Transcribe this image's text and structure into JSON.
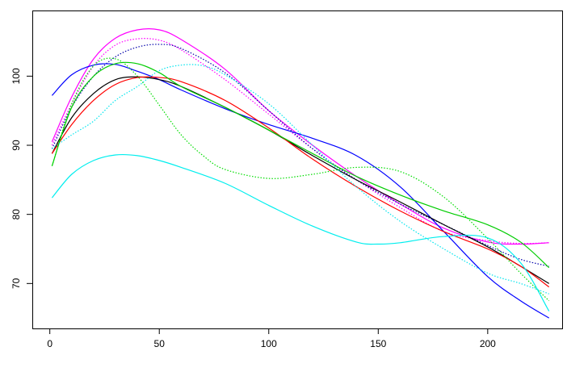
{
  "chart_data": {
    "type": "line",
    "title": "",
    "xlabel": "",
    "ylabel": "",
    "xlim": [
      -8,
      234
    ],
    "ylim": [
      63.5,
      109.5
    ],
    "grid": false,
    "legend": "none",
    "x_ticks": [
      0,
      50,
      100,
      150,
      200
    ],
    "y_ticks": [
      70,
      80,
      90,
      100
    ],
    "series": [
      {
        "color": "#ff00ff",
        "dash": "solid",
        "x": [
          1,
          10,
          20,
          30,
          40,
          50,
          60,
          80,
          100,
          120,
          140,
          160,
          180,
          200,
          215,
          228
        ],
        "y": [
          90.5,
          97,
          102.5,
          105.5,
          106.7,
          106.7,
          105.3,
          101,
          95,
          90,
          85.5,
          81.5,
          78,
          76,
          75.7,
          75.9
        ]
      },
      {
        "color": "#ff00ff",
        "dash": "dotted",
        "x": [
          1,
          10,
          20,
          30,
          40,
          50,
          60,
          80,
          100,
          120,
          140,
          160,
          180,
          200,
          215,
          228
        ],
        "y": [
          90,
          96,
          101.5,
          104.5,
          105.4,
          105.2,
          103.8,
          99.5,
          94.5,
          89.5,
          85,
          81,
          77.5,
          76.2,
          75.8,
          75.9
        ]
      },
      {
        "color": "#0000aa",
        "dash": "dotted",
        "x": [
          1,
          10,
          20,
          30,
          40,
          50,
          60,
          80,
          100,
          120,
          140,
          160,
          180,
          200,
          215,
          228
        ],
        "y": [
          89.5,
          95.5,
          100,
          102.8,
          104.2,
          104.6,
          104,
          100.5,
          95,
          89.5,
          85,
          81.5,
          78.5,
          75.5,
          73.5,
          72.5
        ]
      },
      {
        "color": "#0000ff",
        "dash": "solid",
        "x": [
          1,
          10,
          20,
          30,
          40,
          50,
          60,
          80,
          100,
          120,
          140,
          160,
          180,
          200,
          215,
          228
        ],
        "y": [
          97.2,
          100.2,
          101.6,
          101.7,
          100.7,
          99.5,
          98,
          95.3,
          93,
          91,
          88.5,
          84,
          77.5,
          71,
          67.5,
          65
        ]
      },
      {
        "color": "#000000",
        "dash": "solid",
        "x": [
          1,
          10,
          20,
          30,
          40,
          50,
          60,
          80,
          100,
          120,
          140,
          160,
          180,
          200,
          215,
          228
        ],
        "y": [
          88.8,
          94,
          97.5,
          99.5,
          99.9,
          99.5,
          98.5,
          95.5,
          92.2,
          88.5,
          85,
          81.8,
          78.5,
          75.3,
          72.5,
          70
        ]
      },
      {
        "color": "#ff0000",
        "dash": "solid",
        "x": [
          1,
          10,
          20,
          30,
          40,
          50,
          60,
          80,
          100,
          120,
          140,
          160,
          180,
          200,
          215,
          228
        ],
        "y": [
          88.8,
          93,
          96.5,
          98.8,
          99.8,
          99.8,
          99.2,
          96.5,
          92.5,
          88,
          84,
          80.5,
          77.5,
          75,
          72.5,
          69.5
        ]
      },
      {
        "color": "#00cc00",
        "dash": "solid",
        "x": [
          1,
          10,
          20,
          30,
          40,
          50,
          60,
          80,
          100,
          120,
          140,
          160,
          180,
          200,
          215,
          228
        ],
        "y": [
          87,
          95.5,
          100,
          101.8,
          101.8,
          100.5,
          98.5,
          95.5,
          92.2,
          88.8,
          85.5,
          82.8,
          80.5,
          78.5,
          76,
          72.3
        ]
      },
      {
        "color": "#00dd00",
        "dash": "dotted",
        "x": [
          1,
          10,
          20,
          30,
          40,
          50,
          60,
          70,
          80,
          100,
          120,
          140,
          160,
          180,
          200,
          215,
          228
        ],
        "y": [
          87,
          96,
          101.5,
          102.5,
          100,
          95.8,
          91.5,
          88.5,
          86.5,
          85.2,
          85.8,
          86.8,
          86.2,
          82.5,
          76.5,
          71.5,
          67.5
        ]
      },
      {
        "color": "#00e5ee",
        "dash": "dotted",
        "x": [
          1,
          10,
          20,
          30,
          40,
          50,
          60,
          70,
          80,
          100,
          120,
          140,
          160,
          180,
          200,
          215,
          228
        ],
        "y": [
          89.5,
          91.5,
          93.5,
          96.5,
          98.5,
          100.8,
          101.6,
          101.5,
          100.2,
          96,
          90,
          84,
          79,
          75,
          71.5,
          70,
          68.5
        ]
      },
      {
        "color": "#00eeee",
        "dash": "solid",
        "x": [
          1,
          10,
          20,
          30,
          40,
          50,
          60,
          80,
          100,
          120,
          140,
          150,
          160,
          180,
          200,
          215,
          228
        ],
        "y": [
          82.4,
          85.8,
          87.8,
          88.6,
          88.5,
          87.8,
          86.8,
          84.5,
          81.3,
          78.3,
          76,
          75.7,
          75.9,
          76.8,
          76.6,
          73,
          66
        ]
      }
    ]
  }
}
